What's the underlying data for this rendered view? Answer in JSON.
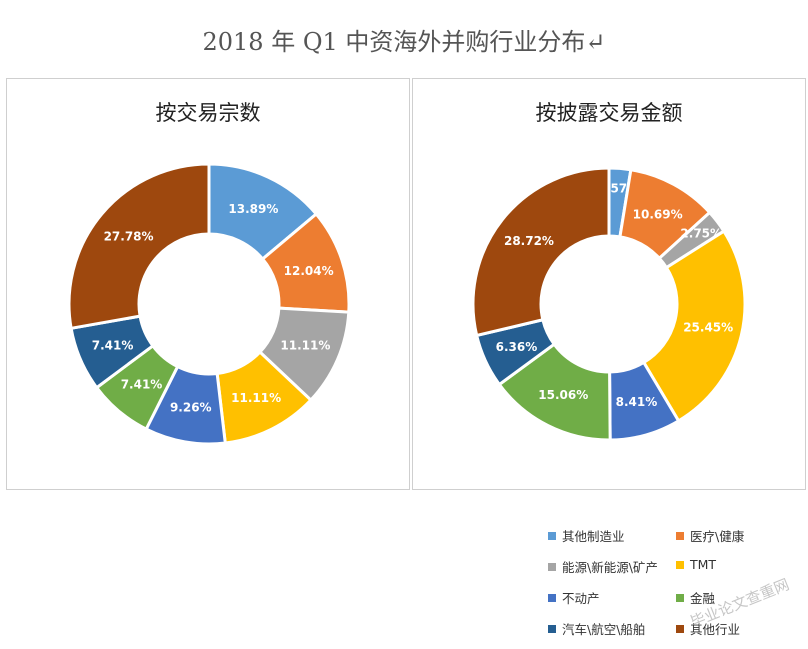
{
  "title": "2018 年 Q1 中资海外并购行业分布↵",
  "legend": [
    {
      "label": "其他制造业",
      "color": "#5B9BD5"
    },
    {
      "label": "医疗\\健康",
      "color": "#ED7D31"
    },
    {
      "label": "能源\\新能源\\矿产",
      "color": "#A5A5A5"
    },
    {
      "label": "TMT",
      "color": "#FFC000"
    },
    {
      "label": "不动产",
      "color": "#4472C4"
    },
    {
      "label": "金融",
      "color": "#70AD47"
    },
    {
      "label": "汽车\\航空\\船舶",
      "color": "#255E91"
    },
    {
      "label": "其他行业",
      "color": "#9E480E"
    }
  ],
  "chart_data": [
    {
      "type": "pie",
      "title": "按交易宗数",
      "categories": [
        "其他制造业",
        "医疗\\健康",
        "能源\\新能源\\矿产",
        "TMT",
        "不动产",
        "金融",
        "汽车\\航空\\船舶",
        "其他行业"
      ],
      "values": [
        13.89,
        12.04,
        11.11,
        11.11,
        9.26,
        7.41,
        7.41,
        27.78
      ],
      "labels": [
        "13.89%",
        "12.04%",
        "11.11%",
        "11.11%",
        "9.26%",
        "7.41%",
        "7.41%",
        "27.78%"
      ],
      "colors": [
        "#5B9BD5",
        "#ED7D31",
        "#A5A5A5",
        "#FFC000",
        "#4472C4",
        "#70AD47",
        "#255E91",
        "#9E480E"
      ],
      "legend_position": "bottom-right"
    },
    {
      "type": "pie",
      "title": "按披露交易金额",
      "categories": [
        "其他制造业",
        "医疗\\健康",
        "能源\\新能源\\矿产",
        "TMT",
        "不动产",
        "金融",
        "汽车\\航空\\船舶",
        "其他行业"
      ],
      "values": [
        2.57,
        10.69,
        2.75,
        25.45,
        8.41,
        15.06,
        6.36,
        28.72
      ],
      "labels": [
        "2.57%",
        "10.69%",
        "2.75%",
        "25.45%",
        "8.41%",
        "15.06%",
        "6.36%",
        "28.72%"
      ],
      "colors": [
        "#5B9BD5",
        "#ED7D31",
        "#A5A5A5",
        "#FFC000",
        "#4472C4",
        "#70AD47",
        "#255E91",
        "#9E480E"
      ],
      "legend_position": "bottom-right"
    }
  ],
  "watermark": "毕业论文查重网"
}
